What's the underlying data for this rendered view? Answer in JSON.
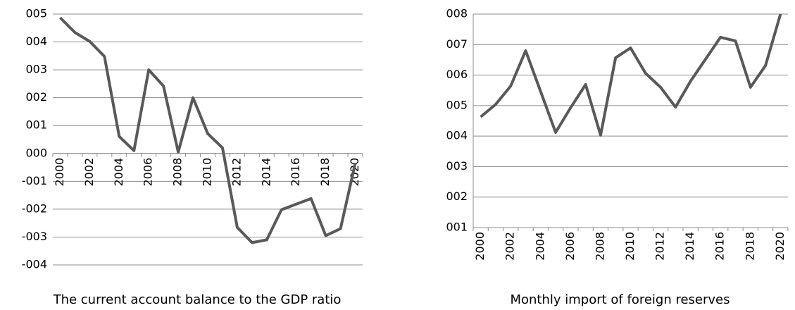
{
  "chart_data": [
    {
      "type": "line",
      "title": "The current account balance to the GDP ratio",
      "categories": [
        "2000",
        null,
        "2002",
        null,
        "2004",
        null,
        "2006",
        null,
        "2008",
        null,
        "2010",
        null,
        "2012",
        null,
        "2014",
        null,
        "2016",
        null,
        "2018",
        null,
        "2020"
      ],
      "values": [
        4.87,
        4.34,
        4.02,
        3.48,
        0.61,
        0.1,
        3.0,
        2.42,
        0.05,
        2.0,
        0.71,
        0.2,
        -2.65,
        -3.2,
        -3.1,
        -2.02,
        -1.82,
        -1.62,
        -2.95,
        -2.7,
        -0.35
      ],
      "color": "#595959",
      "ylim": [
        -4,
        5
      ],
      "yticks": [
        {
          "value": -4,
          "label": "-004"
        },
        {
          "value": -3,
          "label": "-003"
        },
        {
          "value": -2,
          "label": "-002"
        },
        {
          "value": -1,
          "label": "-001"
        },
        {
          "value": 0,
          "label": "000"
        },
        {
          "value": 1,
          "label": "001"
        },
        {
          "value": 2,
          "label": "002"
        },
        {
          "value": 3,
          "label": "003"
        },
        {
          "value": 4,
          "label": "004"
        },
        {
          "value": 5,
          "label": "005"
        }
      ],
      "grid": true
    },
    {
      "type": "line",
      "title": "Monthly import of foreign reserves",
      "categories": [
        "2000",
        null,
        "2002",
        null,
        "2004",
        null,
        "2006",
        null,
        "2008",
        null,
        "2010",
        null,
        "2012",
        null,
        "2014",
        null,
        "2016",
        null,
        "2018",
        null,
        "2020"
      ],
      "values": [
        4.63,
        5.04,
        5.64,
        6.8,
        5.46,
        4.12,
        4.93,
        5.69,
        4.03,
        6.57,
        6.89,
        6.06,
        5.6,
        4.95,
        5.8,
        6.52,
        7.24,
        7.12,
        5.6,
        6.31,
        8.0
      ],
      "color": "#595959",
      "ylim": [
        1,
        8
      ],
      "yticks": [
        {
          "value": 1,
          "label": "001"
        },
        {
          "value": 2,
          "label": "002"
        },
        {
          "value": 3,
          "label": "003"
        },
        {
          "value": 4,
          "label": "004"
        },
        {
          "value": 5,
          "label": "005"
        },
        {
          "value": 6,
          "label": "006"
        },
        {
          "value": 7,
          "label": "007"
        },
        {
          "value": 8,
          "label": "008"
        }
      ],
      "grid": true
    }
  ]
}
